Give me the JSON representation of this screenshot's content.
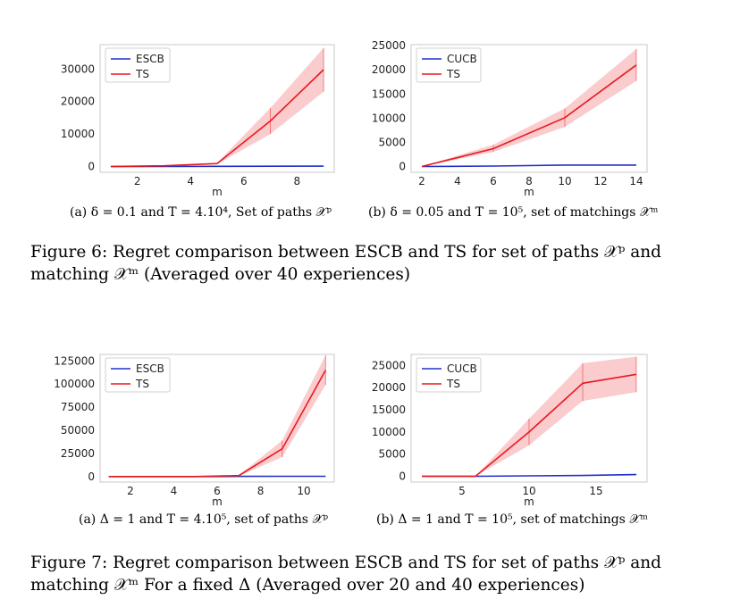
{
  "chart_data": [
    {
      "type": "line",
      "id": "fig6a",
      "xlabel": "m",
      "ylabel": "",
      "xlim": [
        0.6,
        9.4
      ],
      "ylim": [
        -1800,
        37500
      ],
      "xticks": [
        2,
        4,
        6,
        8
      ],
      "yticks": [
        0,
        10000,
        20000,
        30000
      ],
      "ytick_labels": [
        "0",
        "10000",
        "20000",
        "30000"
      ],
      "legend": "top-left",
      "series": [
        {
          "name": "ESCB",
          "color": "#2030c8",
          "x": [
            1,
            3,
            5,
            7,
            9
          ],
          "values": [
            0,
            0,
            50,
            80,
            100
          ]
        },
        {
          "name": "TS",
          "color": "#e8191e",
          "x": [
            1,
            3,
            5,
            7,
            9
          ],
          "values": [
            0,
            200,
            900,
            14000,
            29800
          ],
          "lower": [
            0,
            150,
            700,
            10000,
            23000
          ],
          "upper": [
            0,
            250,
            1100,
            18000,
            36500
          ]
        }
      ]
    },
    {
      "type": "line",
      "id": "fig6b",
      "xlabel": "m",
      "ylabel": "",
      "xlim": [
        1.4,
        14.6
      ],
      "ylim": [
        -1200,
        25200
      ],
      "xticks": [
        2,
        4,
        6,
        8,
        10,
        12,
        14
      ],
      "yticks": [
        0,
        5000,
        10000,
        15000,
        20000,
        25000
      ],
      "ytick_labels": [
        "0",
        "5000",
        "10000",
        "15000",
        "20000",
        "25000"
      ],
      "legend": "top-left",
      "series": [
        {
          "name": "CUCB",
          "color": "#2030c8",
          "x": [
            2,
            6,
            10,
            14
          ],
          "values": [
            0,
            100,
            300,
            300
          ]
        },
        {
          "name": "TS",
          "color": "#e8191e",
          "x": [
            2,
            6,
            10,
            14
          ],
          "values": [
            0,
            3700,
            10100,
            21000
          ],
          "lower": [
            0,
            3000,
            8200,
            17700
          ],
          "upper": [
            0,
            4500,
            12000,
            24300
          ]
        }
      ]
    },
    {
      "type": "line",
      "id": "fig7a",
      "xlabel": "m",
      "ylabel": "",
      "xlim": [
        0.6,
        11.4
      ],
      "ylim": [
        -6000,
        132000
      ],
      "xticks": [
        2,
        4,
        6,
        8,
        10
      ],
      "yticks": [
        0,
        25000,
        50000,
        75000,
        100000,
        125000
      ],
      "ytick_labels": [
        "0",
        "25000",
        "50000",
        "75000",
        "100000",
        "125000"
      ],
      "legend": "top-left",
      "series": [
        {
          "name": "ESCB",
          "color": "#2030c8",
          "x": [
            1,
            3,
            5,
            7,
            9,
            11
          ],
          "values": [
            0,
            0,
            0,
            200,
            300,
            300
          ]
        },
        {
          "name": "TS",
          "color": "#e8191e",
          "x": [
            1,
            3,
            5,
            7,
            9,
            11
          ],
          "values": [
            0,
            0,
            0,
            1000,
            30000,
            115000
          ],
          "lower": [
            0,
            0,
            0,
            500,
            21000,
            99000
          ],
          "upper": [
            0,
            0,
            0,
            1500,
            39000,
            131000
          ]
        }
      ]
    },
    {
      "type": "line",
      "id": "fig7b",
      "xlabel": "m",
      "ylabel": "",
      "xlim": [
        1.2,
        18.8
      ],
      "ylim": [
        -1300,
        27500
      ],
      "xticks": [
        5,
        10,
        15
      ],
      "yticks": [
        0,
        5000,
        10000,
        15000,
        20000,
        25000
      ],
      "ytick_labels": [
        "0",
        "5000",
        "10000",
        "15000",
        "20000",
        "25000"
      ],
      "legend": "top-left",
      "series": [
        {
          "name": "CUCB",
          "color": "#2030c8",
          "x": [
            2,
            6,
            10,
            14,
            18
          ],
          "values": [
            0,
            0,
            100,
            200,
            400
          ]
        },
        {
          "name": "TS",
          "color": "#e8191e",
          "x": [
            2,
            6,
            10,
            14,
            18
          ],
          "values": [
            0,
            0,
            10000,
            21000,
            23000
          ],
          "lower": [
            0,
            0,
            7000,
            17000,
            19000
          ],
          "upper": [
            0,
            0,
            13000,
            25500,
            27000
          ]
        }
      ]
    }
  ],
  "captions": {
    "fig6a": "(a) δ = 0.1 and T = 4.10⁴, Set of paths 𝒳ᵖ",
    "fig6b": "(b) δ = 0.05 and T = 10⁵, set of matchings 𝒳ᵐ",
    "fig6": "Figure 6: Regret comparison between ESCB and TS for set of paths 𝒳ᵖ and matching 𝒳ᵐ (Averaged over 40 experiences)",
    "fig7a": "(a) Δ = 1 and T = 4.10⁵, set of paths 𝒳ᵖ",
    "fig7b": "(b) Δ = 1 and T = 10⁵, set of matchings 𝒳ᵐ",
    "fig7": "Figure 7: Regret comparison between ESCB and TS for set of paths 𝒳ᵖ and matching 𝒳ᵐ For a fixed Δ (Averaged over 20 and 40 experiences)"
  }
}
